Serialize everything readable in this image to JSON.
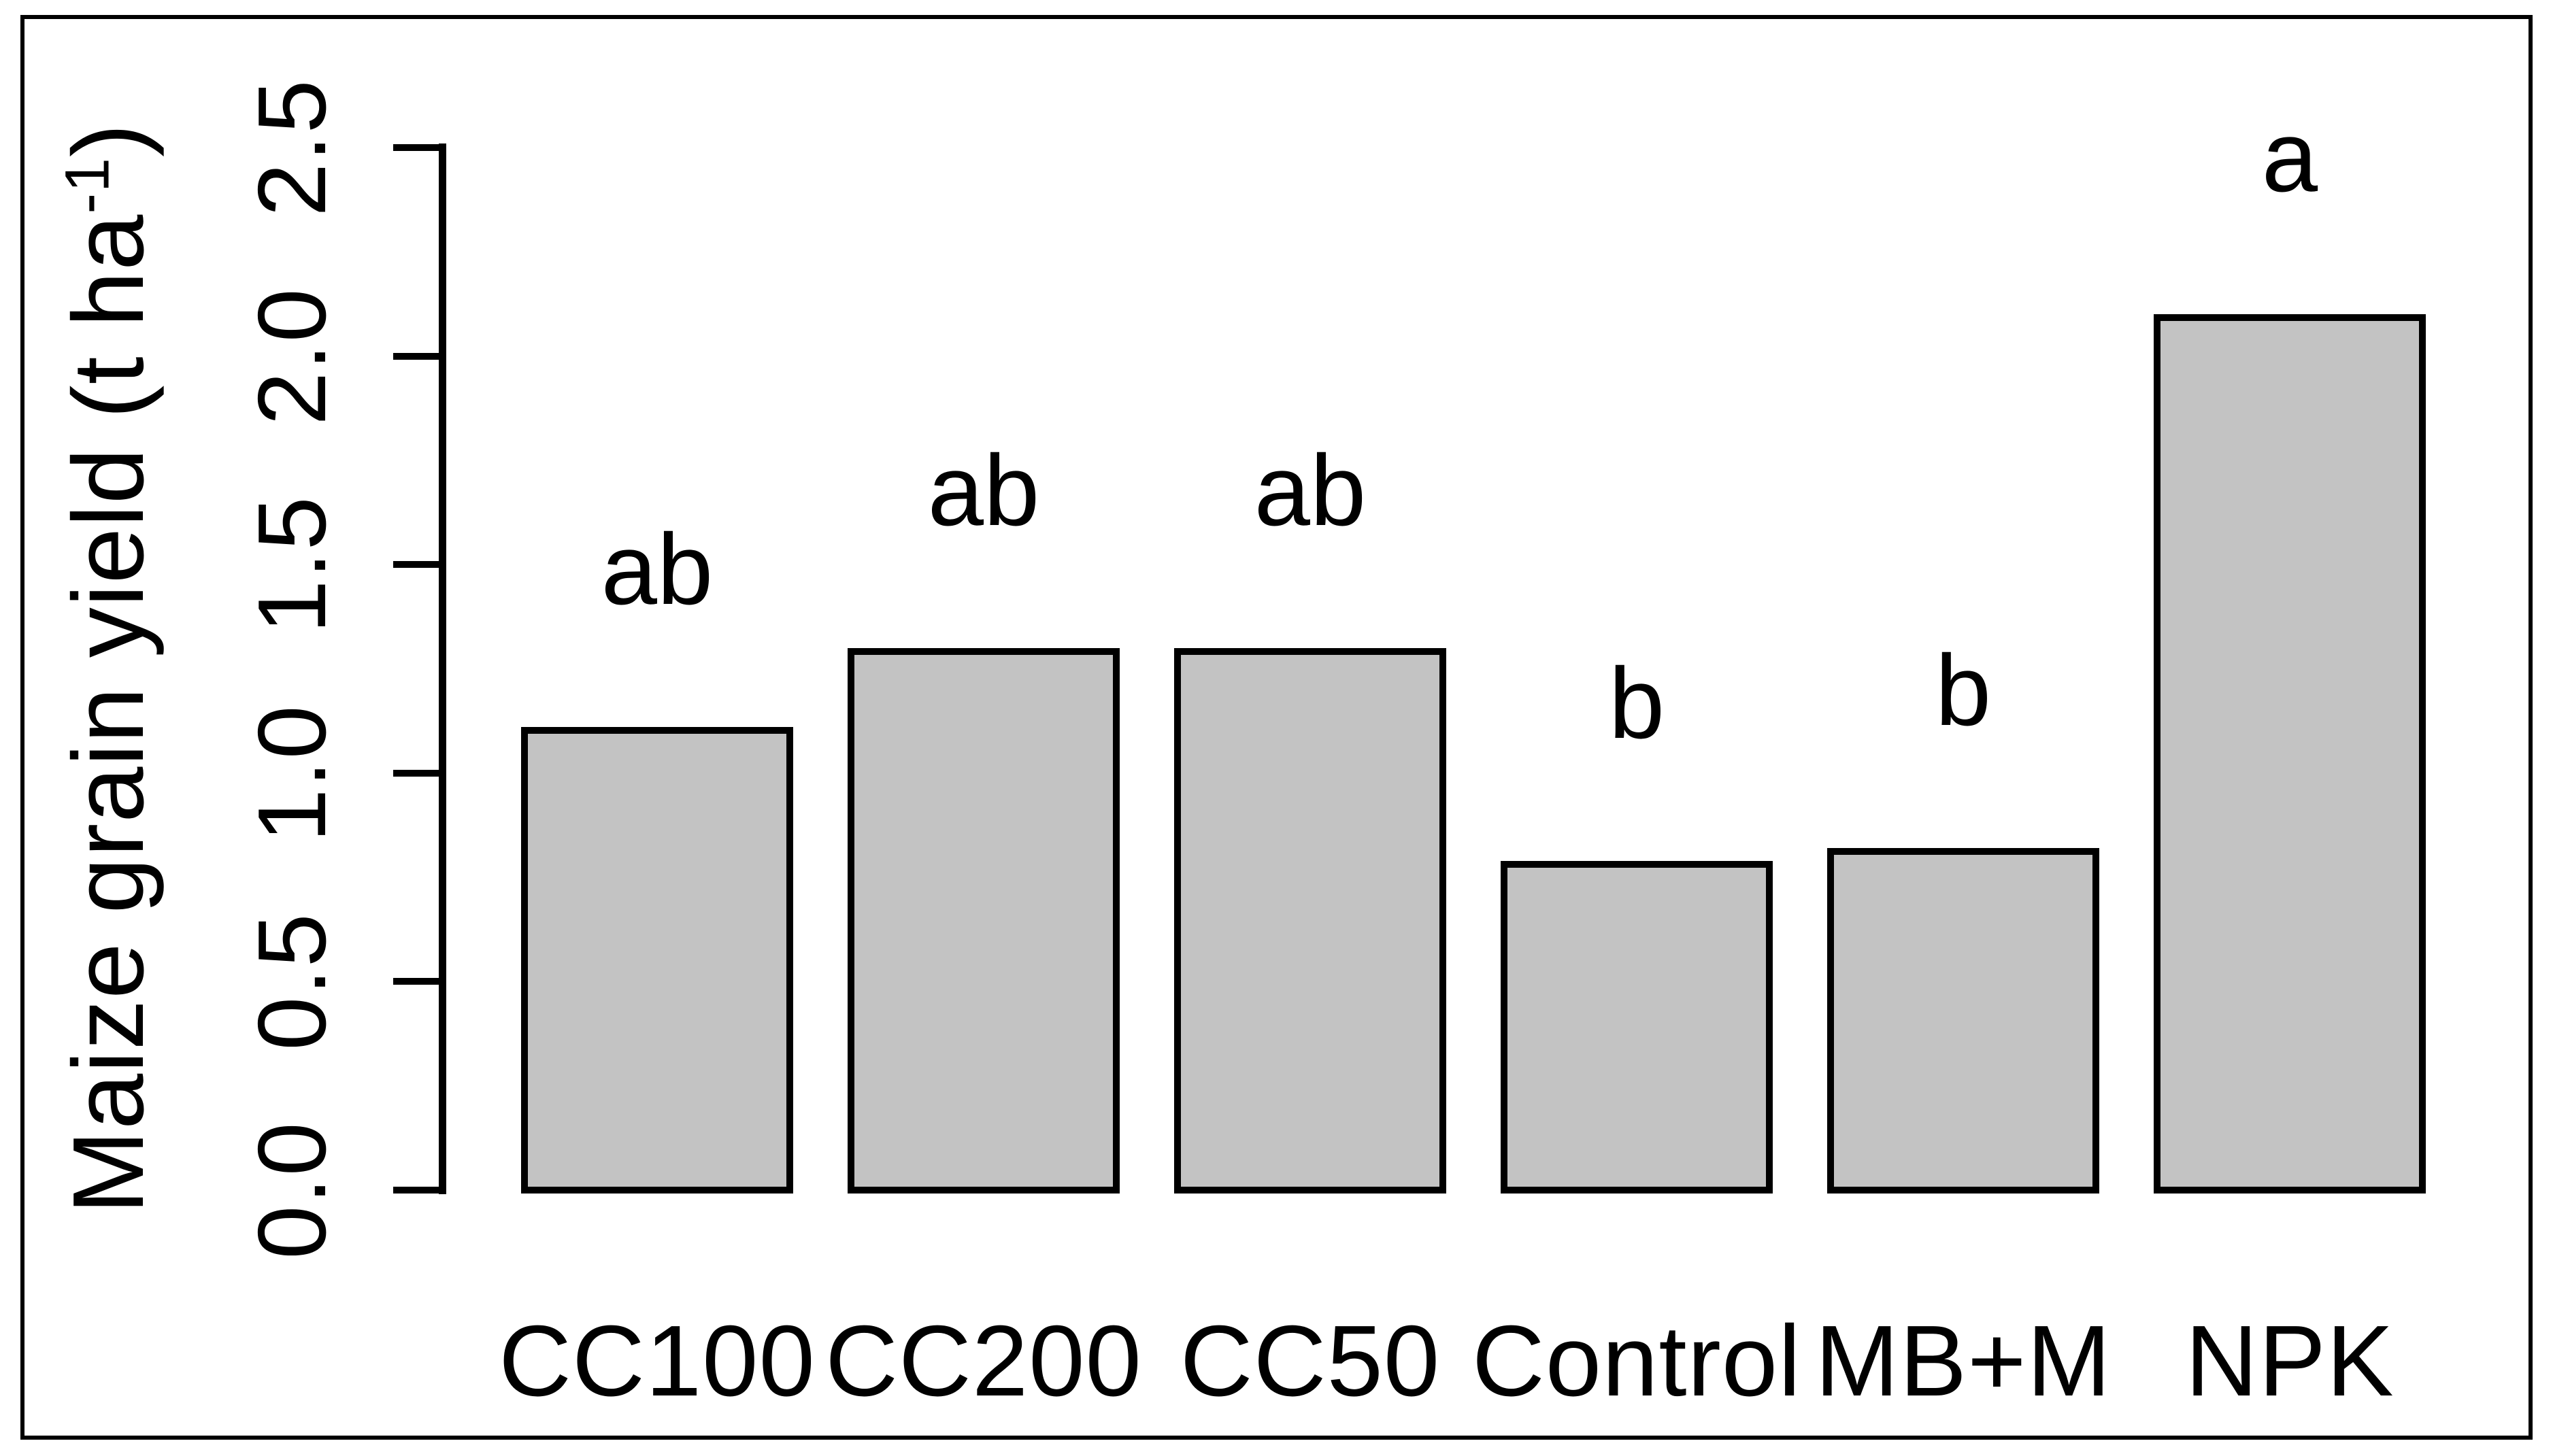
{
  "figure": {
    "background": "#ffffff",
    "frame_color": "#000000",
    "text_color": "#000000"
  },
  "chart_data": {
    "type": "bar",
    "categories": [
      "CC100",
      "CC200",
      "CC50",
      "Control",
      "MB+M",
      "NPK"
    ],
    "values": [
      1.11,
      1.3,
      1.3,
      0.79,
      0.82,
      2.1
    ],
    "sig_letters": [
      "ab",
      "ab",
      "ab",
      "b",
      "b",
      "a"
    ],
    "title": "",
    "xlabel": "",
    "ylabel_plain": "Maize grain yield (t ha⁻¹)",
    "ylabel_prefix": "Maize grain yield (t ha",
    "ylabel_sup": "-1",
    "ylabel_suffix": ")",
    "ylim": [
      0,
      2.5
    ],
    "yticks": [
      0.0,
      0.5,
      1.0,
      1.5,
      2.0,
      2.5
    ],
    "ytick_labels": [
      "0.0",
      "0.5",
      "1.0",
      "1.5",
      "2.0",
      "2.5"
    ],
    "bar_fill": "#c3c3c3",
    "bar_border": "#000000",
    "grid": false,
    "legend": "none"
  }
}
